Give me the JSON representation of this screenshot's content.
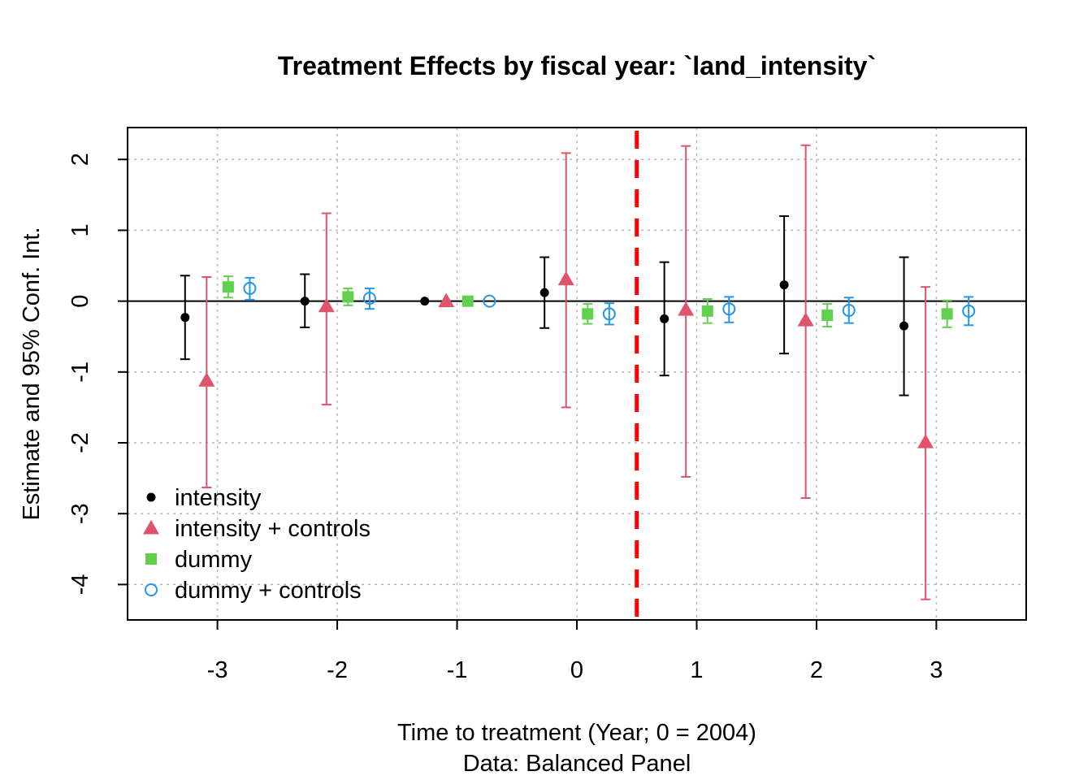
{
  "chart_data": {
    "type": "scatter",
    "title": "Treatment Effects by fiscal year: `land_intensity`",
    "xlabel": "Time to treatment (Year; 0 = 2004)",
    "subtitle": "Data: Balanced Panel",
    "ylabel": "Estimate and 95% Conf. Int.",
    "xlim": [
      -3.75,
      3.75
    ],
    "ylim": [
      -4.5,
      2.45
    ],
    "x_ticks": [
      -3,
      -2,
      -1,
      0,
      1,
      2,
      3
    ],
    "y_ticks": [
      -4,
      -3,
      -2,
      -1,
      0,
      1,
      2
    ],
    "grid": true,
    "zero_line": 0,
    "treatment_line_x": 0.5,
    "treatment_line_color": "#ff0000",
    "legend_position": "bottom-left",
    "series": [
      {
        "name": "intensity",
        "marker": "dot",
        "color": "#000000",
        "offset": -0.27,
        "x": [
          -3,
          -2,
          -1,
          0,
          1,
          2,
          3
        ],
        "y": [
          -0.23,
          0.0,
          0.0,
          0.12,
          -0.25,
          0.23,
          -0.35
        ],
        "lower": [
          -0.82,
          -0.37,
          null,
          -0.38,
          -1.05,
          -0.74,
          -1.33
        ],
        "upper": [
          0.36,
          0.38,
          null,
          0.62,
          0.55,
          1.2,
          0.62
        ]
      },
      {
        "name": "intensity + controls",
        "marker": "triangle",
        "color": "#df536b",
        "offset": -0.09,
        "x": [
          -3,
          -2,
          -1,
          0,
          1,
          2,
          3
        ],
        "y": [
          -1.12,
          -0.07,
          0.0,
          0.31,
          -0.12,
          -0.27,
          -1.99
        ],
        "lower": [
          -2.63,
          -1.46,
          null,
          -1.5,
          -2.48,
          -2.78,
          -4.21
        ],
        "upper": [
          0.34,
          1.24,
          null,
          2.09,
          2.19,
          2.2,
          0.2
        ]
      },
      {
        "name": "dummy",
        "marker": "square",
        "color": "#61d04f",
        "offset": 0.09,
        "x": [
          -3,
          -2,
          -1,
          0,
          1,
          2,
          3
        ],
        "y": [
          0.2,
          0.06,
          0.0,
          -0.18,
          -0.14,
          -0.2,
          -0.18
        ],
        "lower": [
          0.05,
          -0.06,
          null,
          -0.32,
          -0.31,
          -0.36,
          -0.37
        ],
        "upper": [
          0.35,
          0.18,
          null,
          -0.04,
          0.03,
          -0.04,
          0.01
        ]
      },
      {
        "name": "dummy + controls",
        "marker": "circle",
        "color": "#2297e6",
        "offset": 0.27,
        "x": [
          -3,
          -2,
          -1,
          0,
          1,
          2,
          3
        ],
        "y": [
          0.18,
          0.04,
          0.0,
          -0.18,
          -0.11,
          -0.13,
          -0.14
        ],
        "lower": [
          0.02,
          -0.11,
          null,
          -0.33,
          -0.3,
          -0.31,
          -0.34
        ],
        "upper": [
          0.33,
          0.18,
          null,
          -0.03,
          0.06,
          0.05,
          0.06
        ]
      }
    ]
  }
}
